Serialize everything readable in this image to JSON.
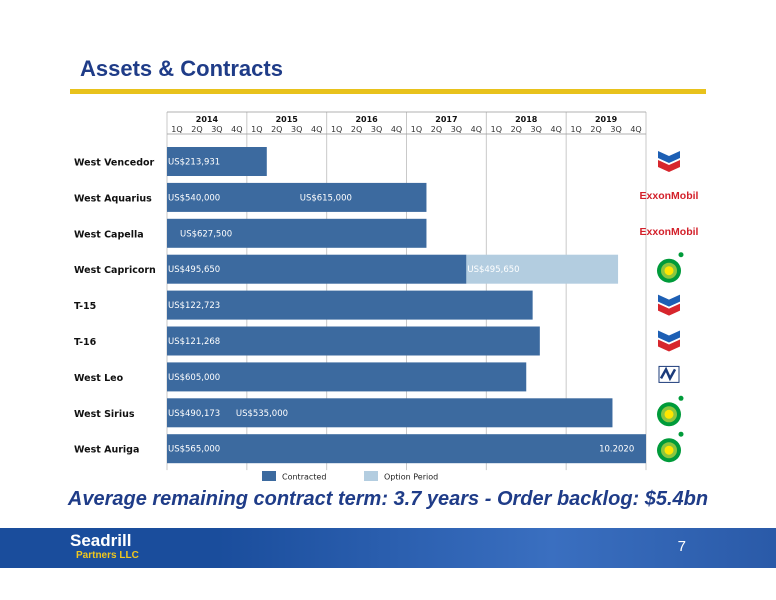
{
  "title": "Assets & Contracts",
  "summary": "Average remaining contract term: 3.7 years - Order backlog: $5.4bn",
  "footer": {
    "logo_main": "Seadrill",
    "logo_sub": "Partners LLC",
    "page_number": "7"
  },
  "colors": {
    "contracted": "#3c6a9f",
    "option": "#b3cde0",
    "title": "#1f3c88",
    "rule": "#e8c21c"
  },
  "chart_data": {
    "type": "gantt",
    "title": "",
    "years": [
      "2014",
      "2015",
      "2016",
      "2017",
      "2018",
      "2019"
    ],
    "quarters": [
      "1Q",
      "2Q",
      "3Q",
      "4Q"
    ],
    "x_range": [
      2014.0,
      2020.0
    ],
    "legend": [
      {
        "key": "contracted",
        "label": "Contracted"
      },
      {
        "key": "option",
        "label": "Option Period"
      }
    ],
    "rigs": [
      {
        "name": "West Vencedor",
        "client": "Chevron",
        "client_icon": "chevron-logo",
        "segments": [
          {
            "type": "contracted",
            "start": 2014.0,
            "end": 2015.25
          }
        ],
        "labels": [
          {
            "text": "US$213,931",
            "at": 2014.0
          }
        ]
      },
      {
        "name": "West Aquarius",
        "client": "ExxonMobil",
        "client_icon": "exxonmobil-logo",
        "segments": [
          {
            "type": "contracted",
            "start": 2014.0,
            "end": 2017.25
          }
        ],
        "labels": [
          {
            "text": "US$540,000",
            "at": 2014.0
          },
          {
            "text": "US$615,000",
            "at": 2015.65
          }
        ]
      },
      {
        "name": "West Capella",
        "client": "ExxonMobil",
        "client_icon": "exxonmobil-logo",
        "segments": [
          {
            "type": "contracted",
            "start": 2014.0,
            "end": 2017.25
          }
        ],
        "labels": [
          {
            "text": "US$627,500",
            "at": 2014.15
          }
        ]
      },
      {
        "name": "West Capricorn",
        "client": "bp",
        "client_icon": "bp-logo",
        "segments": [
          {
            "type": "contracted",
            "start": 2014.0,
            "end": 2017.75
          },
          {
            "type": "option",
            "start": 2017.75,
            "end": 2019.65
          }
        ],
        "labels": [
          {
            "text": "US$495,650",
            "at": 2014.0
          },
          {
            "text": "US$495,650",
            "at": 2017.75
          }
        ]
      },
      {
        "name": "T-15",
        "client": "Chevron",
        "client_icon": "chevron-logo",
        "segments": [
          {
            "type": "contracted",
            "start": 2014.0,
            "end": 2018.58
          }
        ],
        "labels": [
          {
            "text": "US$122,723",
            "at": 2014.0
          }
        ]
      },
      {
        "name": "T-16",
        "client": "Chevron",
        "client_icon": "chevron-logo",
        "segments": [
          {
            "type": "contracted",
            "start": 2014.0,
            "end": 2018.67
          }
        ],
        "labels": [
          {
            "text": "US$121,268",
            "at": 2014.0
          }
        ]
      },
      {
        "name": "West Leo",
        "client": "Tullow",
        "client_icon": "tullow-logo",
        "segments": [
          {
            "type": "contracted",
            "start": 2014.0,
            "end": 2018.5
          }
        ],
        "labels": [
          {
            "text": "US$605,000",
            "at": 2014.0
          }
        ]
      },
      {
        "name": "West Sirius",
        "client": "bp",
        "client_icon": "bp-logo",
        "segments": [
          {
            "type": "contracted",
            "start": 2014.0,
            "end": 2019.58
          }
        ],
        "labels": [
          {
            "text": "US$490,173",
            "at": 2014.0
          },
          {
            "text": "US$535,000",
            "at": 2014.85
          }
        ]
      },
      {
        "name": "West Auriga",
        "client": "bp",
        "client_icon": "bp-logo",
        "segments": [
          {
            "type": "contracted",
            "start": 2014.0,
            "end": 2020.0
          }
        ],
        "labels": [
          {
            "text": "US$565,000",
            "at": 2014.0
          },
          {
            "text": "10.2020",
            "at": 2019.4
          }
        ]
      }
    ]
  }
}
